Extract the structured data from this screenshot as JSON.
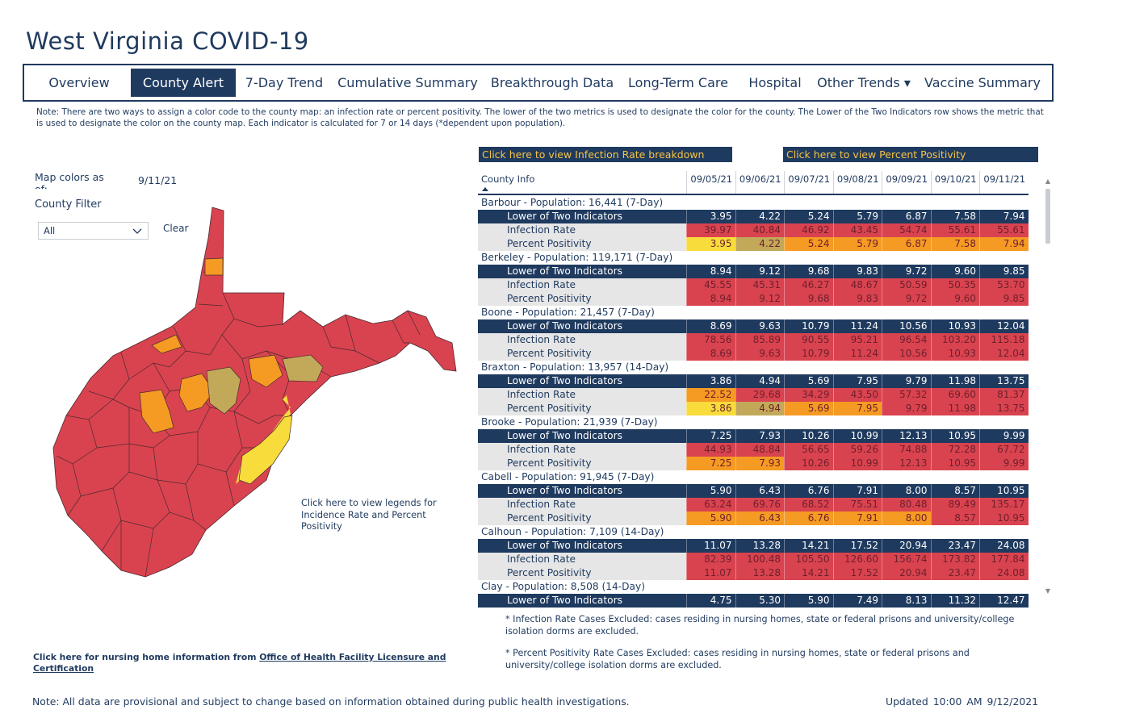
{
  "page": {
    "title": "West Virginia COVID-19",
    "note_top": "Note: There are two ways to assign a color code to the county map: an infection rate or percent positivity. The lower of the two metrics is used to designate the color for the county. The Lower of the Two Indicators row shows the metric that is used to designate the color on the county map. Each indicator is calculated for 7 or 14 days (*dependent upon population).",
    "note_bottom": "Note: All data are provisional and subject to change based on information obtained during public health investigations.",
    "updated_label": "Updated",
    "updated_time": "10:00 AM",
    "updated_date": "9/12/2021"
  },
  "nav": {
    "active": "County Alert",
    "tabs": [
      "Overview",
      "County Alert",
      "7-Day Trend",
      "Cumulative Summary",
      "Breakthrough Data",
      "Long-Term Care",
      "Hospital",
      "Other Trends ▾",
      "Vaccine Summary"
    ]
  },
  "buttons": {
    "infection_rate": "Click here to view Infection Rate breakdown",
    "percent_positivity": "Click here to view Percent Positivity"
  },
  "filters": {
    "map_colors_label": "Map colors as of:",
    "map_colors_date": "9/11/21",
    "county_filter_label": "County Filter",
    "county_filter_value": "All",
    "clear_label": "Clear"
  },
  "map": {
    "legend_link": "Click here to view legends for Incidence Rate and Percent Positivity",
    "colors": {
      "red": "#d9434f",
      "orange": "#f59a23",
      "olive": "#c2a95a",
      "yellow": "#f8dc3c"
    }
  },
  "links": {
    "nursing_prefix": "Click here for nursing home information from ",
    "nursing_link": "Office of Health Facility Licensure and Certification"
  },
  "footnotes": {
    "infection": "* Infection Rate Cases Excluded: cases residing in nursing homes, state or federal prisons and university/college isolation dorms are excluded.",
    "positivity": "* Percent Positivity Rate Cases Excluded: cases residing in nursing homes, state or federal prisons and university/college isolation dorms are excluded."
  },
  "table": {
    "county_header": "County Info",
    "dates": [
      "09/05/21",
      "09/06/21",
      "09/07/21",
      "09/08/21",
      "09/09/21",
      "09/10/21",
      "09/11/21"
    ],
    "row_labels": {
      "lower": "Lower of Two Indicators",
      "ir": "Infection Rate",
      "pp": "Percent Positivity"
    },
    "counties": [
      {
        "name": "Barbour - Population: 16,441 (7-Day)",
        "lower": [
          "3.95",
          "4.22",
          "5.24",
          "5.79",
          "6.87",
          "7.58",
          "7.94"
        ],
        "ir": [
          "39.97",
          "40.84",
          "46.92",
          "43.45",
          "54.74",
          "55.61",
          "55.61"
        ],
        "pp": [
          "3.95",
          "4.22",
          "5.24",
          "5.79",
          "6.87",
          "7.58",
          "7.94"
        ],
        "ir_colors": [
          "red",
          "red",
          "red",
          "red",
          "red",
          "red",
          "red"
        ],
        "pp_colors": [
          "yellow",
          "olive",
          "orange",
          "orange",
          "orange",
          "orange",
          "orange"
        ]
      },
      {
        "name": "Berkeley - Population: 119,171 (7-Day)",
        "lower": [
          "8.94",
          "9.12",
          "9.68",
          "9.83",
          "9.72",
          "9.60",
          "9.85"
        ],
        "ir": [
          "45.55",
          "45.31",
          "46.27",
          "48.67",
          "50.59",
          "50.35",
          "53.70"
        ],
        "pp": [
          "8.94",
          "9.12",
          "9.68",
          "9.83",
          "9.72",
          "9.60",
          "9.85"
        ],
        "ir_colors": [
          "red",
          "red",
          "red",
          "red",
          "red",
          "red",
          "red"
        ],
        "pp_colors": [
          "red",
          "red",
          "red",
          "red",
          "red",
          "red",
          "red"
        ]
      },
      {
        "name": "Boone - Population: 21,457 (7-Day)",
        "lower": [
          "8.69",
          "9.63",
          "10.79",
          "11.24",
          "10.56",
          "10.93",
          "12.04"
        ],
        "ir": [
          "78.56",
          "85.89",
          "90.55",
          "95.21",
          "96.54",
          "103.20",
          "115.18"
        ],
        "pp": [
          "8.69",
          "9.63",
          "10.79",
          "11.24",
          "10.56",
          "10.93",
          "12.04"
        ],
        "ir_colors": [
          "red",
          "red",
          "red",
          "red",
          "red",
          "red",
          "red"
        ],
        "pp_colors": [
          "red",
          "red",
          "red",
          "red",
          "red",
          "red",
          "red"
        ]
      },
      {
        "name": "Braxton - Population: 13,957 (14-Day)",
        "lower": [
          "3.86",
          "4.94",
          "5.69",
          "7.95",
          "9.79",
          "11.98",
          "13.75"
        ],
        "ir": [
          "22.52",
          "29.68",
          "34.29",
          "43.50",
          "57.32",
          "69.60",
          "81.37"
        ],
        "pp": [
          "3.86",
          "4.94",
          "5.69",
          "7.95",
          "9.79",
          "11.98",
          "13.75"
        ],
        "ir_colors": [
          "orange",
          "red",
          "red",
          "red",
          "red",
          "red",
          "red"
        ],
        "pp_colors": [
          "yellow",
          "olive",
          "orange",
          "orange",
          "red",
          "red",
          "red"
        ]
      },
      {
        "name": "Brooke - Population: 21,939 (7-Day)",
        "lower": [
          "7.25",
          "7.93",
          "10.26",
          "10.99",
          "12.13",
          "10.95",
          "9.99"
        ],
        "ir": [
          "44.93",
          "48.84",
          "56.65",
          "59.26",
          "74.88",
          "72.28",
          "67.72"
        ],
        "pp": [
          "7.25",
          "7.93",
          "10.26",
          "10.99",
          "12.13",
          "10.95",
          "9.99"
        ],
        "ir_colors": [
          "red",
          "red",
          "red",
          "red",
          "red",
          "red",
          "red"
        ],
        "pp_colors": [
          "orange",
          "orange",
          "red",
          "red",
          "red",
          "red",
          "red"
        ]
      },
      {
        "name": "Cabell - Population: 91,945 (7-Day)",
        "lower": [
          "5.90",
          "6.43",
          "6.76",
          "7.91",
          "8.00",
          "8.57",
          "10.95"
        ],
        "ir": [
          "63.24",
          "69.76",
          "68.52",
          "75.51",
          "80.48",
          "89.49",
          "135.17"
        ],
        "pp": [
          "5.90",
          "6.43",
          "6.76",
          "7.91",
          "8.00",
          "8.57",
          "10.95"
        ],
        "ir_colors": [
          "red",
          "red",
          "red",
          "red",
          "red",
          "red",
          "red"
        ],
        "pp_colors": [
          "orange",
          "orange",
          "orange",
          "orange",
          "orange",
          "red",
          "red"
        ]
      },
      {
        "name": "Calhoun - Population: 7,109 (14-Day)",
        "lower": [
          "11.07",
          "13.28",
          "14.21",
          "17.52",
          "20.94",
          "23.47",
          "24.08"
        ],
        "ir": [
          "82.39",
          "100.48",
          "105.50",
          "126.60",
          "156.74",
          "173.82",
          "177.84"
        ],
        "pp": [
          "11.07",
          "13.28",
          "14.21",
          "17.52",
          "20.94",
          "23.47",
          "24.08"
        ],
        "ir_colors": [
          "red",
          "red",
          "red",
          "red",
          "red",
          "red",
          "red"
        ],
        "pp_colors": [
          "red",
          "red",
          "red",
          "red",
          "red",
          "red",
          "red"
        ]
      },
      {
        "name": "Clay - Population: 8,508 (14-Day)",
        "lower": [
          "4.75",
          "5.30",
          "5.90",
          "7.49",
          "8.13",
          "11.32",
          "12.47"
        ],
        "ir": [],
        "pp": [],
        "ir_colors": [],
        "pp_colors": []
      }
    ]
  }
}
